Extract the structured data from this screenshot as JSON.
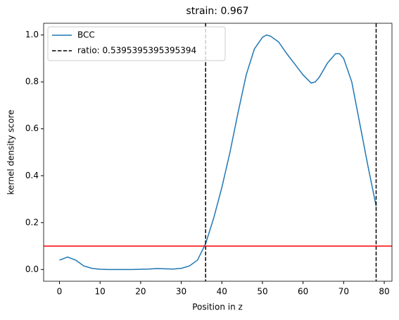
{
  "chart_data": {
    "type": "line",
    "title": "strain: 0.967",
    "xlabel": "Position in z",
    "ylabel": "kernel density score",
    "x": [
      0,
      2,
      4,
      6,
      8,
      10,
      12,
      14,
      16,
      18,
      20,
      22,
      24,
      26,
      28,
      30,
      32,
      34,
      36,
      38,
      40,
      42,
      44,
      46,
      48,
      50,
      51,
      52,
      54,
      56,
      58,
      60,
      62,
      63,
      64,
      66,
      68,
      69,
      70,
      72,
      74,
      76,
      78
    ],
    "series": [
      {
        "name": "BCC",
        "color": "#1f77b4",
        "values": [
          0.04,
          0.053,
          0.04,
          0.015,
          0.005,
          0.001,
          0.0,
          0.0,
          0.0,
          0.0,
          0.001,
          0.002,
          0.004,
          0.003,
          0.002,
          0.005,
          0.015,
          0.04,
          0.11,
          0.22,
          0.35,
          0.5,
          0.67,
          0.83,
          0.94,
          0.99,
          1.0,
          0.995,
          0.97,
          0.92,
          0.875,
          0.83,
          0.795,
          0.8,
          0.82,
          0.88,
          0.92,
          0.92,
          0.9,
          0.8,
          0.62,
          0.44,
          0.27
        ]
      }
    ],
    "vlines": {
      "name": "ratio: 0.5395395395395394",
      "color": "#000000",
      "x": [
        36,
        78
      ]
    },
    "hline": {
      "y": 0.1,
      "color": "#ff0000"
    },
    "xlim": [
      -3.9,
      81.9
    ],
    "ylim": [
      -0.05,
      1.05
    ],
    "xticks": [
      0,
      10,
      20,
      30,
      40,
      50,
      60,
      70,
      80
    ],
    "yticks": [
      {
        "value": 0,
        "label": "0.0"
      },
      0.2,
      0.4,
      0.6,
      0.8,
      {
        "value": 1,
        "label": "1.0"
      }
    ],
    "grid": false,
    "legend": "upper-left"
  }
}
